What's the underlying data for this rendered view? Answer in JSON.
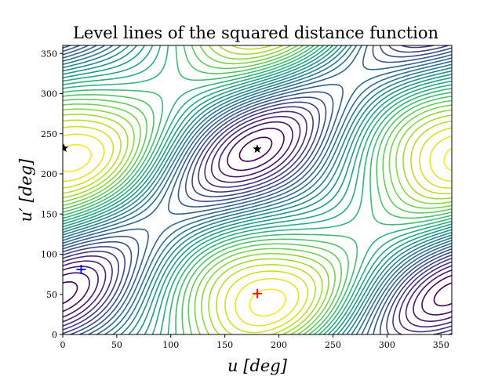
{
  "chart_data": {
    "type": "contour",
    "title": "Level lines of the squared distance function",
    "xlabel": "u [deg]",
    "ylabel": "u′ [deg]",
    "xlim": [
      0,
      360
    ],
    "ylim": [
      0,
      360
    ],
    "xticks": [
      0,
      50,
      100,
      150,
      200,
      250,
      300,
      350
    ],
    "yticks": [
      0,
      50,
      100,
      150,
      200,
      250,
      300,
      350
    ],
    "colormap": "viridis",
    "levels": 30,
    "grid": false,
    "markers": [
      {
        "symbol": "star",
        "color": "#000000",
        "x": 180,
        "y": 231
      },
      {
        "symbol": "star",
        "color": "#000000",
        "x": 1,
        "y": 232
      },
      {
        "symbol": "plus",
        "color": "#0000ff",
        "x": 17,
        "y": 81
      },
      {
        "symbol": "plus",
        "color": "#ff0000",
        "x": 180,
        "y": 51
      }
    ]
  }
}
